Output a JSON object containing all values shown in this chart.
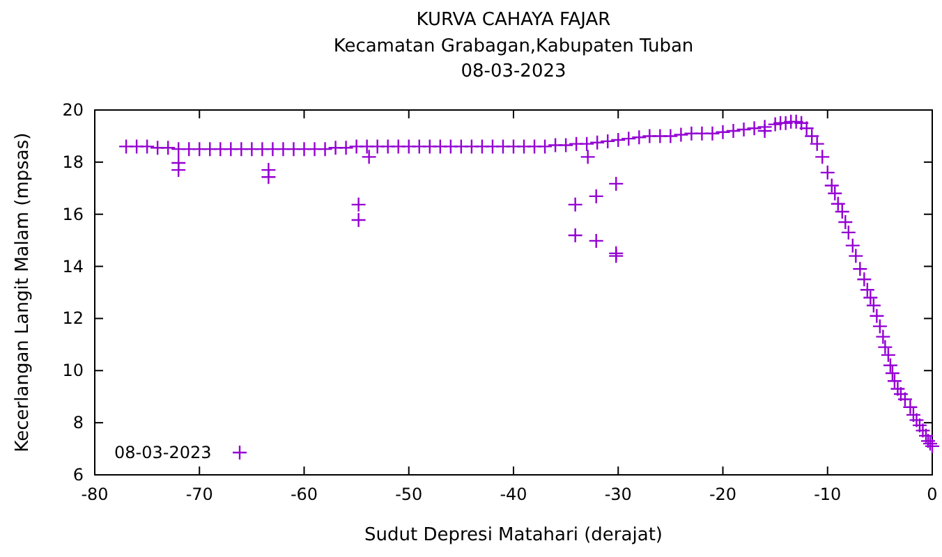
{
  "chart_data": {
    "type": "scatter",
    "title": "KURVA CAHAYA FAJAR",
    "subtitle": "Kecamatan Grabagan,Kabupaten Tuban\n08-03-2023",
    "xlabel": "Sudut Depresi Matahari (derajat)",
    "ylabel": "Kecerlangan Langit Malam (mpsas)",
    "xlim": [
      -80,
      0
    ],
    "xticks": [
      -80,
      -70,
      -60,
      -50,
      -40,
      -30,
      -20,
      -10,
      0
    ],
    "ylim": [
      6,
      20
    ],
    "yticks": [
      6,
      8,
      10,
      12,
      14,
      16,
      18,
      20
    ],
    "grid": false,
    "legend": "bottom left",
    "marker": "cross",
    "series": [
      {
        "name": "08-03-2023",
        "color": "#9400d3",
        "x": [
          -77,
          -76,
          -75,
          -74,
          -73,
          -72,
          -71,
          -70,
          -69,
          -68,
          -67,
          -66,
          -65,
          -64,
          -63,
          -62,
          -61,
          -60,
          -59,
          -58,
          -57,
          -56,
          -55,
          -54,
          -53,
          -52,
          -51,
          -50,
          -49,
          -48,
          -47,
          -46,
          -45,
          -44,
          -43,
          -42,
          -41,
          -40,
          -39,
          -38,
          -37,
          -36,
          -35,
          -34,
          -33,
          -32,
          -31,
          -30,
          -29,
          -28,
          -27,
          -26,
          -25,
          -24,
          -23,
          -22,
          -21,
          -20,
          -19,
          -18,
          -17,
          -16,
          -15,
          -14.5,
          -14,
          -13.5,
          -13,
          -12.5,
          -12,
          -11.5,
          -11,
          -10.5,
          -10,
          -9.6,
          -9.3,
          -9,
          -8.6,
          -8.3,
          -8,
          -7.6,
          -7.3,
          -6.9,
          -6.5,
          -6.2,
          -5.9,
          -5.6,
          -5.3,
          -5,
          -4.7,
          -4.5,
          -4.2,
          -4,
          -3.8,
          -3.6,
          -3.3,
          -3,
          -2.6,
          -2.1,
          -1.8,
          -1.5,
          -1.2,
          -0.9,
          -0.6,
          -0.4,
          -0.2,
          0,
          -72,
          -72,
          -63.4,
          -63.4,
          -54.8,
          -54.8,
          -53.8,
          -34.1,
          -34.1,
          -32.1,
          -32.1,
          -30.2,
          -30.2,
          -30.2,
          -32.9,
          -16
        ],
        "values": [
          18.6,
          18.6,
          18.6,
          18.55,
          18.55,
          18.5,
          18.5,
          18.5,
          18.5,
          18.5,
          18.5,
          18.5,
          18.5,
          18.5,
          18.5,
          18.5,
          18.5,
          18.5,
          18.5,
          18.5,
          18.55,
          18.55,
          18.6,
          18.6,
          18.6,
          18.6,
          18.6,
          18.6,
          18.6,
          18.6,
          18.6,
          18.6,
          18.6,
          18.6,
          18.6,
          18.6,
          18.6,
          18.6,
          18.6,
          18.6,
          18.6,
          18.65,
          18.65,
          18.7,
          18.7,
          18.75,
          18.8,
          18.85,
          18.9,
          18.95,
          19,
          19,
          19,
          19.05,
          19.1,
          19.1,
          19.1,
          19.15,
          19.2,
          19.25,
          19.3,
          19.35,
          19.45,
          19.5,
          19.5,
          19.55,
          19.55,
          19.5,
          19.3,
          19,
          18.7,
          18.2,
          17.6,
          17.1,
          16.8,
          16.4,
          16.1,
          15.7,
          15.3,
          14.8,
          14.4,
          13.9,
          13.5,
          13.1,
          12.8,
          12.5,
          12.1,
          11.7,
          11.3,
          10.9,
          10.6,
          10.2,
          9.9,
          9.6,
          9.3,
          9.1,
          8.9,
          8.6,
          8.3,
          8.1,
          7.9,
          7.7,
          7.5,
          7.3,
          7.2,
          7.1,
          17.97,
          17.7,
          17.7,
          17.43,
          16.37,
          15.78,
          18.2,
          16.37,
          15.19,
          16.69,
          14.98,
          17.17,
          14.5,
          14.4,
          18.2,
          19.2
        ]
      }
    ]
  }
}
